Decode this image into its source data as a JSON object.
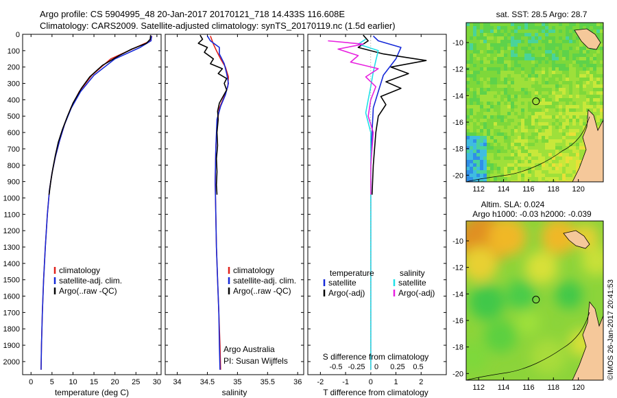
{
  "header": {
    "line1": "Argo profile: CS 5904995_48 20-Jan-2017 20170121_718 14.433S 116.608E",
    "line2": "Climatology: CARS2009. Satellite-adjusted climatology: synTS_20170119.nc (1.5d earlier)"
  },
  "side_note": "©IMOS 26-Jan-2017 20:41:53",
  "colors": {
    "clim": "#e0201a",
    "sat": "#1428d8",
    "argo": "#000000",
    "cyan": "#20e0e8",
    "magenta": "#e820e0"
  },
  "chart_data": [
    {
      "type": "line",
      "id": "temperature",
      "xlabel": "temperature (deg C)",
      "xlim": [
        -2,
        31
      ],
      "xticks": [
        0,
        5,
        10,
        15,
        20,
        25,
        30
      ],
      "ylim": [
        0,
        2080
      ],
      "yticks": [
        0,
        100,
        200,
        300,
        400,
        500,
        600,
        700,
        800,
        900,
        1000,
        1100,
        1200,
        1300,
        1400,
        1500,
        1600,
        1700,
        1800,
        1900,
        2000
      ],
      "legend": [
        "climatology",
        "satellite-adj. clim.",
        "Argo(..raw -QC)"
      ],
      "series": [
        {
          "name": "climatology",
          "color": "clim",
          "points": [
            [
              28.8,
              10
            ],
            [
              28.5,
              40
            ],
            [
              25,
              80
            ],
            [
              19,
              150
            ],
            [
              14.5,
              250
            ],
            [
              11.5,
              350
            ],
            [
              9.5,
              450
            ],
            [
              8,
              550
            ],
            [
              6.8,
              650
            ],
            [
              5.8,
              750
            ],
            [
              5,
              850
            ],
            [
              4.4,
              950
            ],
            [
              3.9,
              1100
            ],
            [
              3.4,
              1300
            ],
            [
              3,
              1500
            ],
            [
              2.7,
              1700
            ],
            [
              2.5,
              1900
            ],
            [
              2.4,
              2050
            ]
          ]
        },
        {
          "name": "satellite-adj. clim.",
          "color": "sat",
          "points": [
            [
              28.7,
              10
            ],
            [
              28.6,
              40
            ],
            [
              26,
              80
            ],
            [
              20,
              150
            ],
            [
              15,
              250
            ],
            [
              11.8,
              350
            ],
            [
              9.6,
              450
            ],
            [
              8,
              550
            ],
            [
              6.8,
              650
            ],
            [
              5.8,
              750
            ],
            [
              5,
              850
            ],
            [
              4.4,
              950
            ],
            [
              3.9,
              1100
            ],
            [
              3.4,
              1300
            ],
            [
              3,
              1500
            ],
            [
              2.7,
              1700
            ],
            [
              2.5,
              1900
            ],
            [
              2.4,
              2050
            ]
          ]
        },
        {
          "name": "Argo(..raw -QC)",
          "color": "argo",
          "points": [
            [
              28.5,
              5
            ],
            [
              28.4,
              30
            ],
            [
              27.5,
              55
            ],
            [
              24,
              90
            ],
            [
              21,
              130
            ],
            [
              17,
              190
            ],
            [
              14,
              260
            ],
            [
              12,
              330
            ],
            [
              10,
              420
            ],
            [
              8.7,
              500
            ],
            [
              7.5,
              580
            ],
            [
              6.5,
              660
            ],
            [
              5.8,
              740
            ],
            [
              5.2,
              820
            ],
            [
              4.7,
              900
            ],
            [
              4.3,
              980
            ]
          ]
        }
      ]
    },
    {
      "type": "line",
      "id": "salinity",
      "xlabel": "salinity",
      "xlim": [
        33.8,
        36.1
      ],
      "xticks": [
        34,
        34.5,
        35,
        35.5,
        36
      ],
      "ylim": [
        0,
        2080
      ],
      "legend": [
        "climatology",
        "satellite-adj. clim.",
        "Argo(..raw -QC)"
      ],
      "note1": "Argo Australia",
      "note2": "PI: Susan Wijffels",
      "series": [
        {
          "name": "climatology",
          "color": "clim",
          "points": [
            [
              34.55,
              10
            ],
            [
              34.6,
              60
            ],
            [
              34.65,
              100
            ],
            [
              34.72,
              150
            ],
            [
              34.8,
              200
            ],
            [
              34.85,
              260
            ],
            [
              34.84,
              320
            ],
            [
              34.78,
              380
            ],
            [
              34.7,
              450
            ],
            [
              34.66,
              550
            ],
            [
              34.64,
              700
            ],
            [
              34.63,
              900
            ],
            [
              34.64,
              1100
            ],
            [
              34.65,
              1300
            ],
            [
              34.67,
              1500
            ],
            [
              34.69,
              1700
            ],
            [
              34.71,
              1900
            ],
            [
              34.72,
              2050
            ]
          ]
        },
        {
          "name": "satellite-adj. clim.",
          "color": "sat",
          "points": [
            [
              34.5,
              10
            ],
            [
              34.55,
              40
            ],
            [
              34.7,
              80
            ],
            [
              34.7,
              120
            ],
            [
              34.78,
              180
            ],
            [
              34.82,
              240
            ],
            [
              34.85,
              300
            ],
            [
              34.8,
              370
            ],
            [
              34.72,
              440
            ],
            [
              34.66,
              520
            ],
            [
              34.64,
              700
            ],
            [
              34.63,
              900
            ],
            [
              34.64,
              1100
            ],
            [
              34.65,
              1300
            ],
            [
              34.67,
              1500
            ],
            [
              34.69,
              1700
            ],
            [
              34.7,
              1900
            ],
            [
              34.71,
              2050
            ]
          ]
        },
        {
          "name": "Argo(..raw -QC)",
          "color": "argo",
          "points": [
            [
              34.38,
              5
            ],
            [
              34.42,
              30
            ],
            [
              34.35,
              55
            ],
            [
              34.5,
              80
            ],
            [
              34.45,
              110
            ],
            [
              34.6,
              150
            ],
            [
              34.55,
              180
            ],
            [
              34.75,
              210
            ],
            [
              34.68,
              240
            ],
            [
              34.82,
              270
            ],
            [
              34.78,
              300
            ],
            [
              34.82,
              340
            ],
            [
              34.76,
              380
            ],
            [
              34.7,
              420
            ],
            [
              34.67,
              470
            ],
            [
              34.68,
              520
            ],
            [
              34.66,
              600
            ],
            [
              34.67,
              680
            ],
            [
              34.65,
              760
            ],
            [
              34.66,
              840
            ],
            [
              34.65,
              920
            ],
            [
              34.66,
              980
            ]
          ]
        }
      ]
    },
    {
      "type": "line",
      "id": "difference",
      "xlabel": "T difference from climatology",
      "xlim": [
        -2.5,
        3
      ],
      "xticks": [
        -2,
        -1,
        0,
        1,
        2
      ],
      "top_axis_label": "S difference from climatology",
      "top_ticks": [
        "-0.5",
        "-0.25",
        "0",
        "0.25",
        "0.5"
      ],
      "ylim": [
        0,
        2080
      ],
      "legend_left_title": "temperature",
      "legend_right_title": "salinity",
      "legend": [
        "satellite",
        "Argo(-adj)",
        "satellite",
        "Argo(-adj)"
      ],
      "series": [
        {
          "name": "T satellite",
          "color": "sat",
          "points": [
            [
              0.1,
              10
            ],
            [
              0.3,
              40
            ],
            [
              1.2,
              80
            ],
            [
              1,
              150
            ],
            [
              0.5,
              250
            ],
            [
              0.3,
              350
            ],
            [
              0.1,
              450
            ],
            [
              0.05,
              600
            ],
            [
              0,
              800
            ],
            [
              0,
              2050
            ]
          ]
        },
        {
          "name": "T Argo(-adj)",
          "color": "argo",
          "points": [
            [
              -0.3,
              5
            ],
            [
              -0.1,
              40
            ],
            [
              -0.5,
              80
            ],
            [
              0.5,
              120
            ],
            [
              2.2,
              160
            ],
            [
              0.8,
              200
            ],
            [
              1.5,
              240
            ],
            [
              0.6,
              290
            ],
            [
              1.2,
              330
            ],
            [
              0.4,
              380
            ],
            [
              0.6,
              430
            ],
            [
              0.3,
              500
            ],
            [
              0.2,
              600
            ],
            [
              0.1,
              800
            ],
            [
              0.05,
              980
            ]
          ]
        },
        {
          "name": "S satellite",
          "color": "cyan",
          "points": [
            [
              -0.2,
              30
            ],
            [
              -0.5,
              60
            ],
            [
              0.3,
              100
            ],
            [
              0.2,
              160
            ],
            [
              0.1,
              230
            ],
            [
              0,
              320
            ],
            [
              -0.1,
              400
            ],
            [
              -0.2,
              480
            ],
            [
              0,
              600
            ],
            [
              0,
              800
            ],
            [
              0,
              2050
            ]
          ]
        },
        {
          "name": "S Argo(-adj)",
          "color": "magenta",
          "points": [
            [
              -1.7,
              40
            ],
            [
              -0.3,
              60
            ],
            [
              -1.3,
              90
            ],
            [
              -0.5,
              130
            ],
            [
              -0.8,
              170
            ],
            [
              0.3,
              210
            ],
            [
              -0.2,
              260
            ],
            [
              0.2,
              320
            ],
            [
              0,
              400
            ],
            [
              -0.1,
              500
            ],
            [
              0.1,
              600
            ],
            [
              0,
              800
            ],
            [
              0,
              980
            ]
          ]
        }
      ]
    },
    {
      "type": "heatmap",
      "id": "sst-map",
      "title": "sat. SST: 28.5 Argo: 28.7",
      "xticks": [
        112,
        114,
        116,
        118,
        120
      ],
      "yticks": [
        -10,
        -12,
        -14,
        -16,
        -18,
        -20
      ],
      "xlim": [
        111,
        122
      ],
      "ylim": [
        -20.5,
        -8.5
      ],
      "marker": [
        116.6,
        -14.43
      ]
    },
    {
      "type": "heatmap",
      "id": "sla-map",
      "title_line1": "Altim. SLA: 0.024",
      "title_line2": "Argo h1000: -0.03 h2000: -0.039",
      "xticks": [
        112,
        114,
        116,
        118,
        120
      ],
      "yticks": [
        -10,
        -12,
        -14,
        -16,
        -18,
        -20
      ],
      "xlim": [
        111,
        122
      ],
      "ylim": [
        -20.5,
        -8.5
      ],
      "marker": [
        116.6,
        -14.43
      ]
    }
  ]
}
